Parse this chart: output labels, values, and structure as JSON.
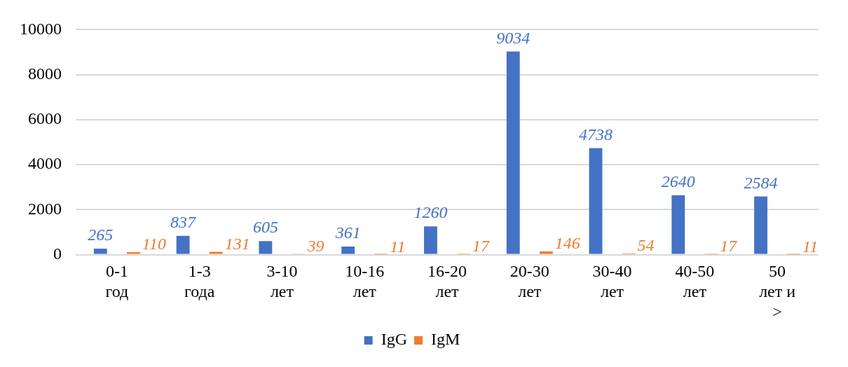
{
  "chart_data": {
    "type": "bar",
    "categories": [
      "0-1 год",
      "1-3 года",
      "3-10 лет",
      "10-16 лет",
      "16-20 лет",
      "20-30 лет",
      "30-40 лет",
      "40-50 лет",
      "50 лет и >"
    ],
    "series": [
      {
        "name": "IgG",
        "color": "#4472c4",
        "values": [
          265,
          837,
          605,
          361,
          1260,
          9034,
          4738,
          2640,
          2584
        ]
      },
      {
        "name": "IgM",
        "color": "#ed7d31",
        "values": [
          110,
          131,
          39,
          11,
          17,
          146,
          54,
          17,
          11
        ]
      }
    ],
    "ylim": [
      0,
      10000
    ],
    "yticks": [
      0,
      2000,
      4000,
      6000,
      8000,
      10000
    ],
    "grid": "y",
    "legend": "bottom",
    "data_labels": true
  }
}
